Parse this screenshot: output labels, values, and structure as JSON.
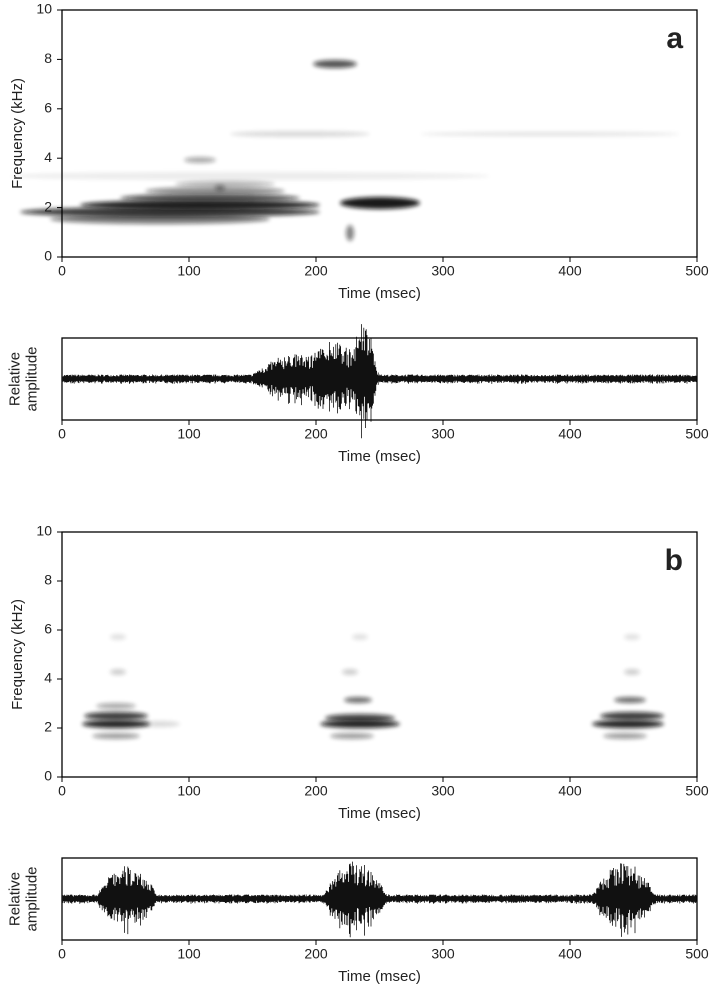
{
  "chart_data": [
    {
      "type": "spectrogram",
      "panel_label": "a",
      "xlabel": "Time (msec)",
      "ylabel": "Frequency (kHz)",
      "xlim": [
        0,
        500
      ],
      "xticks": [
        0,
        100,
        200,
        300,
        400,
        500
      ],
      "ylim": [
        0,
        10
      ],
      "yticks": [
        0,
        2,
        4,
        6,
        8,
        10
      ]
    },
    {
      "type": "waveform",
      "xlabel": "Time (msec)",
      "ylabel": [
        "Relative",
        "amplitude"
      ],
      "xlim": [
        0,
        500
      ],
      "xticks": [
        0,
        100,
        200,
        300,
        400,
        500
      ]
    },
    {
      "type": "spectrogram",
      "panel_label": "b",
      "xlabel": "Time (msec)",
      "ylabel": "Frequency (kHz)",
      "xlim": [
        0,
        500
      ],
      "xticks": [
        0,
        100,
        200,
        300,
        400,
        500
      ],
      "ylim": [
        0,
        10
      ],
      "yticks": [
        0,
        2,
        4,
        6,
        8,
        10
      ]
    },
    {
      "type": "waveform",
      "xlabel": "Time (msec)",
      "ylabel": [
        "Relative",
        "amplitude"
      ],
      "xlim": [
        0,
        500
      ],
      "xticks": [
        0,
        100,
        200,
        300,
        400,
        500
      ]
    }
  ]
}
